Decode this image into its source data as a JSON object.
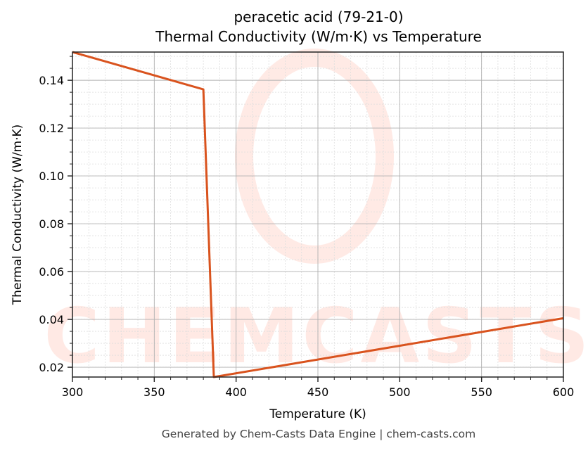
{
  "chart_data": {
    "type": "line",
    "title": "peracetic acid (79-21-0)",
    "subtitle": "Thermal Conductivity (W/m·K) vs Temperature",
    "xlabel": "Temperature (K)",
    "ylabel": "Thermal Conductivity (W/m·K)",
    "xlim": [
      300,
      600
    ],
    "ylim": [
      0.0159,
      0.1518
    ],
    "xticks": [
      300,
      350,
      400,
      450,
      500,
      550,
      600
    ],
    "xtick_labels": [
      "300",
      "350",
      "400",
      "450",
      "500",
      "550",
      "600"
    ],
    "yticks": [
      0.02,
      0.04,
      0.06,
      0.08,
      0.1,
      0.12,
      0.14
    ],
    "ytick_labels": [
      "0.02",
      "0.04",
      "0.06",
      "0.08",
      "0.10",
      "0.12",
      "0.14"
    ],
    "grid": true,
    "legend": null,
    "series": [
      {
        "name": "Thermal Conductivity",
        "color": "#d9531e",
        "x": [
          300,
          380,
          386.4,
          600
        ],
        "y": [
          0.1518,
          0.1362,
          0.0159,
          0.0405
        ]
      }
    ],
    "watermark": "CHEMCASTS"
  },
  "footer": "Generated by Chem-Casts Data Engine | chem-casts.com"
}
